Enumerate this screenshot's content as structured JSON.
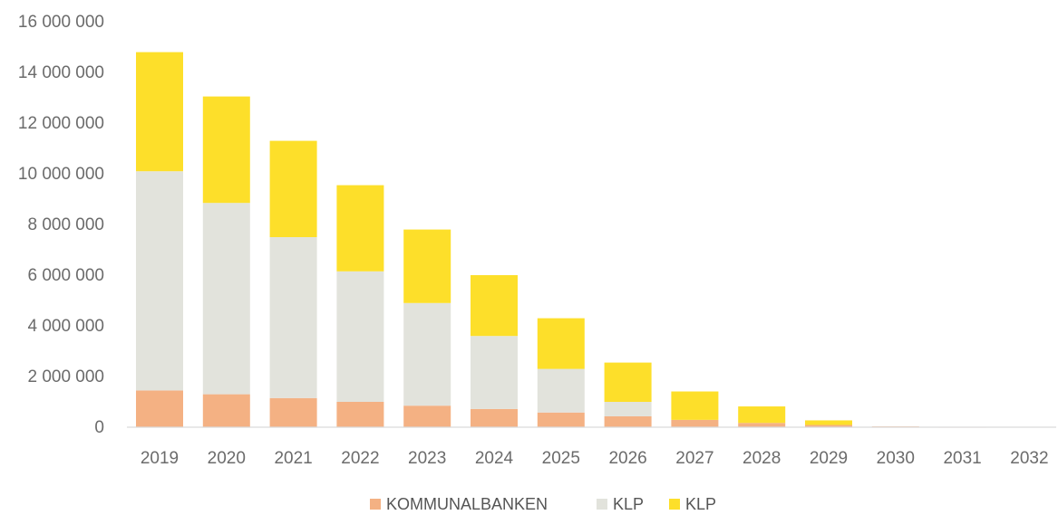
{
  "chart_data": {
    "type": "bar",
    "stacked": true,
    "categories": [
      "2019",
      "2020",
      "2021",
      "2022",
      "2023",
      "2024",
      "2025",
      "2026",
      "2027",
      "2028",
      "2029",
      "2030",
      "2031",
      "2032"
    ],
    "series": [
      {
        "name": "KOMMUNALBANKEN",
        "color": "#f4b183",
        "values": [
          1450000,
          1300000,
          1150000,
          1000000,
          850000,
          720000,
          580000,
          430000,
          290000,
          170000,
          90000,
          30000,
          10000,
          0
        ]
      },
      {
        "name": "KLP",
        "color": "#e2e3dc",
        "values": [
          8650000,
          7550000,
          6350000,
          5150000,
          4050000,
          2880000,
          1720000,
          570000,
          0,
          0,
          0,
          0,
          0,
          0
        ]
      },
      {
        "name": "KLP",
        "color": "#fddf2a",
        "values": [
          4700000,
          4200000,
          3800000,
          3400000,
          2900000,
          2400000,
          2000000,
          1550000,
          1120000,
          650000,
          180000,
          0,
          0,
          0
        ]
      }
    ],
    "yticks": [
      "0",
      "2 000 000",
      "4 000 000",
      "6 000 000",
      "8 000 000",
      "10 000 000",
      "12 000 000",
      "14 000 000",
      "16 000 000"
    ],
    "ylim": [
      0,
      16000000
    ],
    "grid": false,
    "legend_position": "bottom"
  }
}
